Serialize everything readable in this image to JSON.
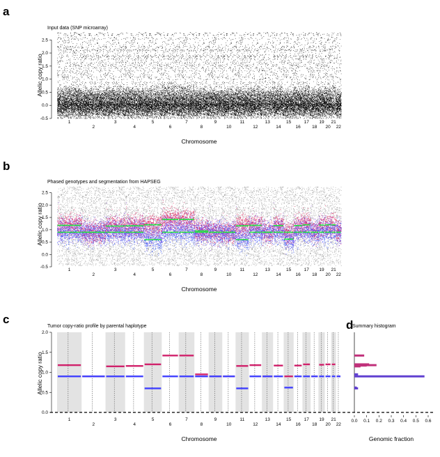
{
  "chart_data": [
    {
      "panel": "a",
      "type": "scatter",
      "title": "Input data (SNP microarray)",
      "xlabel": "Chromosome",
      "ylabel": "Allelic copy ratio",
      "yticks": [
        "-0.5",
        "0.0",
        "0.5",
        "1.0",
        "1.5",
        "2.0",
        "2.5"
      ],
      "ylim": [
        -0.5,
        2.8
      ],
      "chromosome_labels_top": [
        "1",
        "3",
        "5",
        "7",
        "9",
        "11",
        "13",
        "15",
        "17",
        "19",
        "21"
      ],
      "chromosome_labels_bottom": [
        "2",
        "4",
        "6",
        "8",
        "10",
        "12",
        "14",
        "16",
        "18",
        "20",
        "22"
      ],
      "colors": {
        "points": "#000000"
      }
    },
    {
      "panel": "b",
      "type": "scatter",
      "title": "Phased genotypes and segmentation from HAPSEG",
      "xlabel": "Chromosome",
      "ylabel": "Allelic copy ratio",
      "yticks": [
        "-0.5",
        "0.0",
        "0.5",
        "1.0",
        "1.5",
        "2.0",
        "2.5"
      ],
      "ylim": [
        -0.5,
        2.8
      ],
      "chromosome_labels_top": [
        "1",
        "3",
        "5",
        "7",
        "9",
        "11",
        "13",
        "15",
        "17",
        "19",
        "21"
      ],
      "chromosome_labels_bottom": [
        "2",
        "4",
        "6",
        "8",
        "10",
        "12",
        "14",
        "16",
        "18",
        "20",
        "22"
      ],
      "colors": {
        "gray": "#a0a0a0",
        "red": "#e0205a",
        "blue": "#3050ff",
        "purple": "#9050e0",
        "segment": "#20e040"
      }
    },
    {
      "panel": "c",
      "type": "line",
      "title": "Tumor copy-ratio profile by parental haplotype",
      "xlabel": "Chromosome",
      "ylabel": "Allelic copy ratio",
      "yticks": [
        "0.0",
        "0.5",
        "1.0",
        "1.5",
        "2.0"
      ],
      "ylim": [
        0,
        2
      ],
      "chromosome_labels_top": [
        "1",
        "3",
        "5",
        "7",
        "9",
        "11",
        "13",
        "15",
        "17",
        "19",
        "21"
      ],
      "chromosome_labels_bottom": [
        "2",
        "4",
        "6",
        "8",
        "10",
        "12",
        "14",
        "16",
        "18",
        "20",
        "22"
      ],
      "colors": {
        "high": "#d0206a",
        "low": "#4040ff",
        "shade": "#e3e3e3"
      },
      "segments": [
        {
          "chr": 1,
          "high": 1.18,
          "low": 0.9
        },
        {
          "chr": 2,
          "high": 0.9,
          "low": 0.9
        },
        {
          "chr": 3,
          "high": 1.15,
          "low": 0.9
        },
        {
          "chr": 4,
          "high": 1.16,
          "low": 0.9
        },
        {
          "chr": 5,
          "high": 1.2,
          "low": 0.6
        },
        {
          "chr": 6,
          "high": 1.42,
          "low": 0.9
        },
        {
          "chr": 7,
          "high": 1.42,
          "low": 0.9
        },
        {
          "chr": 8,
          "high": 0.95,
          "low": 0.9
        },
        {
          "chr": 9,
          "high": 0.9,
          "low": 0.9
        },
        {
          "chr": 10,
          "high": 0.9,
          "low": 0.9
        },
        {
          "chr": 11,
          "high": 1.16,
          "low": 0.6
        },
        {
          "chr": 12,
          "high": 1.18,
          "low": 0.9
        },
        {
          "chr": 13,
          "high": 0.9,
          "low": 0.9
        },
        {
          "chr": 14,
          "high": 1.17,
          "low": 0.9
        },
        {
          "chr": 15,
          "high": 0.9,
          "low": 0.62
        },
        {
          "chr": 16,
          "high": 1.17,
          "low": 0.9
        },
        {
          "chr": 17,
          "high": 1.2,
          "low": 0.9
        },
        {
          "chr": 18,
          "high": 0.9,
          "low": 0.9
        },
        {
          "chr": 19,
          "high": 1.19,
          "low": 0.9
        },
        {
          "chr": 20,
          "high": 1.2,
          "low": 0.9
        },
        {
          "chr": 21,
          "high": 1.2,
          "low": 0.9
        },
        {
          "chr": 22,
          "high": 0.9,
          "low": 0.9
        }
      ]
    },
    {
      "panel": "d",
      "type": "bar",
      "title": "Summary histogram",
      "xlabel": "Genomic fraction",
      "xticks": [
        "0.0",
        "0.1",
        "0.2",
        "0.3",
        "0.4",
        "0.5",
        "0.6"
      ],
      "xlim": [
        0,
        0.6
      ],
      "ylim": [
        0,
        2
      ],
      "bins": [
        {
          "y": 0.6,
          "fraction": 0.03
        },
        {
          "y": 0.62,
          "fraction": 0.02
        },
        {
          "y": 0.9,
          "fraction": 0.57
        },
        {
          "y": 0.95,
          "fraction": 0.03
        },
        {
          "y": 1.15,
          "fraction": 0.05
        },
        {
          "y": 1.17,
          "fraction": 0.1
        },
        {
          "y": 1.18,
          "fraction": 0.18
        },
        {
          "y": 1.2,
          "fraction": 0.12
        },
        {
          "y": 1.42,
          "fraction": 0.08
        }
      ]
    }
  ]
}
